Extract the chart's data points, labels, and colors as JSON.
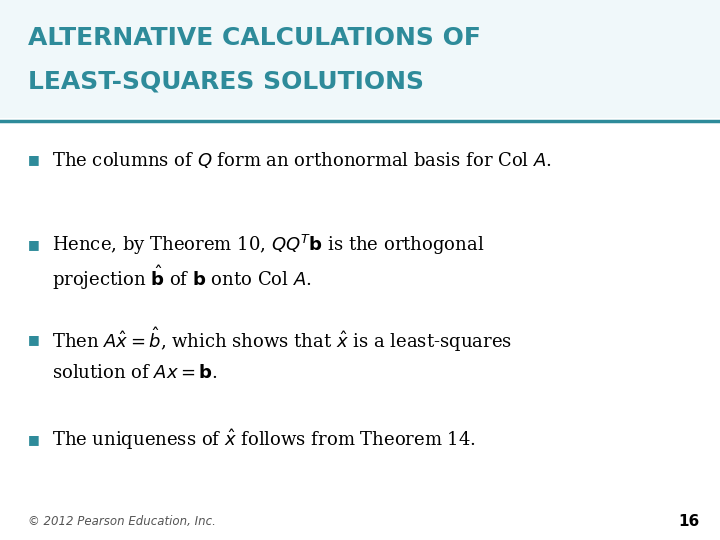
{
  "title_line1": "ALTERNATIVE CALCULATIONS OF",
  "title_line2": "LEAST-SQUARES SOLUTIONS",
  "title_color": "#2E8B9A",
  "title_bg_color": "#F0F8FA",
  "separator_color": "#2E8B9A",
  "bg_color": "#FFFFFF",
  "bullet_color": "#2E8B9A",
  "text_color": "#000000",
  "footer_text": "© 2012 Pearson Education, Inc.",
  "page_number": "16",
  "bullet1": "The columns of $Q$ form an orthonormal basis for Col $A$.",
  "bullet2_line1": "Hence, by Theorem 10, $QQ^T\\mathbf{b}$ is the orthogonal",
  "bullet2_line2": "projection $\\hat{\\mathbf{b}}$ of $\\mathbf{b}$ onto Col $A$.",
  "bullet3_line1": "Then $A\\hat{x} = \\hat{b}$, which shows that $\\hat{x}$ is a least-squares",
  "bullet3_line2": "solution of $Ax = \\mathbf{b}$.",
  "bullet4": "The uniqueness of $\\hat{x}$ follows from Theorem 14.",
  "title_fontsize": 18,
  "body_fontsize": 13,
  "footer_fontsize": 8.5
}
